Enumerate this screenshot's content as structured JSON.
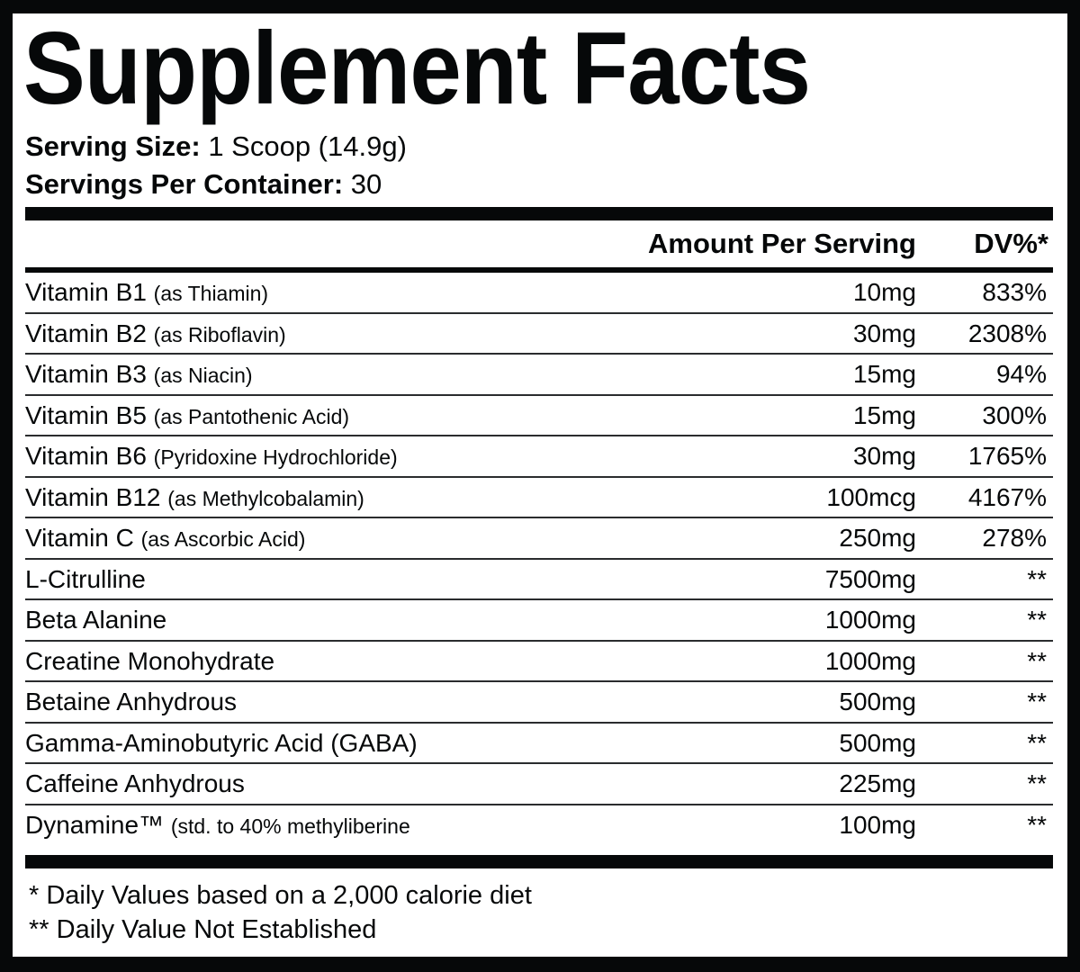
{
  "title": "Supplement Facts",
  "serving_size": {
    "label": "Serving Size:",
    "value": "1 Scoop (14.9g)"
  },
  "servings_per_container": {
    "label": "Servings Per Container:",
    "value": "30"
  },
  "header": {
    "amount": "Amount Per Serving",
    "dv": "DV%*"
  },
  "rows": [
    {
      "name": "Vitamin B1",
      "note": "(as Thiamin)",
      "amount": "10mg",
      "dv": "833%"
    },
    {
      "name": "Vitamin B2",
      "note": "(as Riboflavin)",
      "amount": "30mg",
      "dv": "2308%"
    },
    {
      "name": "Vitamin B3",
      "note": "(as Niacin)",
      "amount": "15mg",
      "dv": "94%"
    },
    {
      "name": "Vitamin B5",
      "note": "(as Pantothenic Acid)",
      "amount": "15mg",
      "dv": "300%"
    },
    {
      "name": "Vitamin B6",
      "note": "(Pyridoxine Hydrochloride)",
      "amount": "30mg",
      "dv": "1765%"
    },
    {
      "name": "Vitamin B12",
      "note": "(as Methylcobalamin)",
      "amount": "100mcg",
      "dv": "4167%"
    },
    {
      "name": "Vitamin C",
      "note": "(as Ascorbic Acid)",
      "amount": "250mg",
      "dv": "278%"
    },
    {
      "name": "L-Citrulline",
      "note": "",
      "amount": "7500mg",
      "dv": "**"
    },
    {
      "name": "Beta Alanine",
      "note": "",
      "amount": "1000mg",
      "dv": "**"
    },
    {
      "name": "Creatine Monohydrate",
      "note": "",
      "amount": "1000mg",
      "dv": "**"
    },
    {
      "name": "Betaine Anhydrous",
      "note": "",
      "amount": "500mg",
      "dv": "**"
    },
    {
      "name": "Gamma-Aminobutyric Acid (GABA)",
      "note": "",
      "amount": "500mg",
      "dv": "**"
    },
    {
      "name": "Caffeine Anhydrous",
      "note": "",
      "amount": "225mg",
      "dv": "**"
    },
    {
      "name": "Dynamine™",
      "note": "(std. to 40% methyliberine",
      "amount": "100mg",
      "dv": "**"
    }
  ],
  "footnotes": [
    "* Daily Values based on a 2,000 calorie diet",
    "** Daily Value Not Established"
  ]
}
